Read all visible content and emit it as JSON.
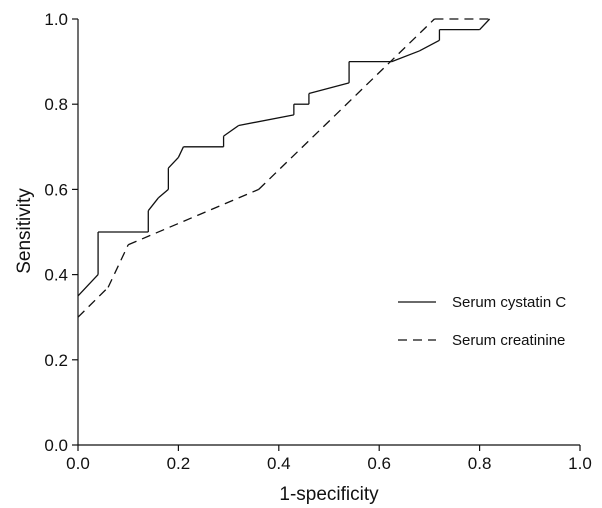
{
  "chart_data": {
    "type": "line",
    "xlabel": "1-specificity",
    "ylabel": "Sensitivity",
    "xlim": [
      0.0,
      1.0
    ],
    "ylim": [
      0.0,
      1.0
    ],
    "xticks": [
      "0.0",
      "0.2",
      "0.4",
      "0.6",
      "0.8",
      "1.0"
    ],
    "yticks": [
      "0.0",
      "0.2",
      "0.4",
      "0.6",
      "0.8",
      "1.0"
    ],
    "grid": false,
    "legend_position": "lower-right",
    "series": [
      {
        "name": "Serum cystatin C",
        "line_style": "solid",
        "color": "#111111",
        "points": [
          [
            0.0,
            0.35
          ],
          [
            0.04,
            0.4
          ],
          [
            0.04,
            0.5
          ],
          [
            0.14,
            0.5
          ],
          [
            0.14,
            0.55
          ],
          [
            0.16,
            0.58
          ],
          [
            0.18,
            0.6
          ],
          [
            0.18,
            0.65
          ],
          [
            0.2,
            0.675
          ],
          [
            0.21,
            0.7
          ],
          [
            0.29,
            0.7
          ],
          [
            0.29,
            0.725
          ],
          [
            0.32,
            0.75
          ],
          [
            0.43,
            0.775
          ],
          [
            0.43,
            0.8
          ],
          [
            0.46,
            0.8
          ],
          [
            0.46,
            0.825
          ],
          [
            0.54,
            0.85
          ],
          [
            0.54,
            0.9
          ],
          [
            0.625,
            0.9
          ],
          [
            0.68,
            0.925
          ],
          [
            0.72,
            0.95
          ],
          [
            0.72,
            0.975
          ],
          [
            0.8,
            0.975
          ],
          [
            0.82,
            1.0
          ]
        ]
      },
      {
        "name": "Serum creatinine",
        "line_style": "dashed",
        "color": "#111111",
        "points": [
          [
            0.0,
            0.3
          ],
          [
            0.06,
            0.37
          ],
          [
            0.1,
            0.47
          ],
          [
            0.36,
            0.6
          ],
          [
            0.71,
            1.0
          ],
          [
            0.82,
            1.0
          ]
        ]
      }
    ]
  }
}
